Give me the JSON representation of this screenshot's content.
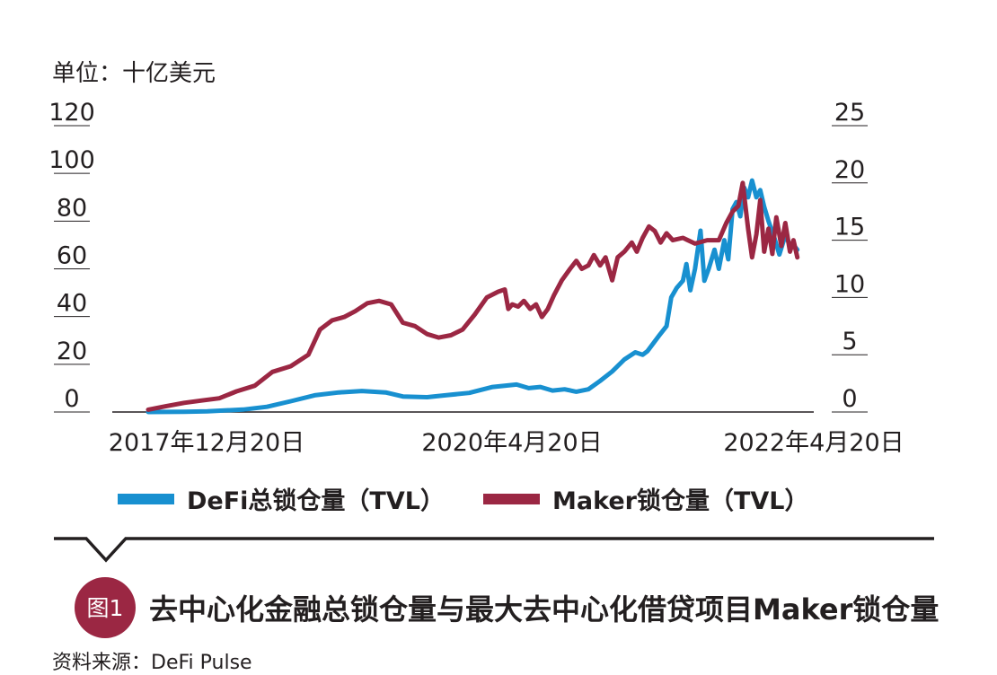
{
  "chart_data": {
    "type": "line",
    "unit_label": "单位：十亿美元",
    "left_axis": {
      "ticks": [
        "120",
        "100",
        "80",
        "60",
        "40",
        "20",
        "0"
      ],
      "range": [
        0,
        120
      ]
    },
    "right_axis": {
      "ticks": [
        "25",
        "20",
        "15",
        "10",
        "5",
        "0"
      ],
      "range": [
        0,
        25
      ]
    },
    "x_ticks": [
      "2017年12月20日",
      "2020年4月20日",
      "2022年4月20日"
    ],
    "x_range": [
      "2017-07-01",
      "2022-06-01"
    ],
    "grid": false,
    "legend_position": "bottom",
    "series": [
      {
        "name": "DeFi总锁仓量（TVL）",
        "axis": "left",
        "color": "#1890d0",
        "points": [
          [
            "2017-10-01",
            0
          ],
          [
            "2018-01-01",
            0.1
          ],
          [
            "2018-03-01",
            0.3
          ],
          [
            "2018-06-01",
            1.0
          ],
          [
            "2018-08-01",
            2.2
          ],
          [
            "2018-10-01",
            4.5
          ],
          [
            "2018-12-01",
            7.0
          ],
          [
            "2019-02-01",
            8.2
          ],
          [
            "2019-04-01",
            8.8
          ],
          [
            "2019-06-01",
            8.2
          ],
          [
            "2019-07-15",
            6.5
          ],
          [
            "2019-09-15",
            6.2
          ],
          [
            "2019-11-01",
            7.0
          ],
          [
            "2020-01-01",
            8.0
          ],
          [
            "2020-03-01",
            10.5
          ],
          [
            "2020-05-01",
            11.5
          ],
          [
            "2020-06-01",
            10.0
          ],
          [
            "2020-07-01",
            10.5
          ],
          [
            "2020-08-01",
            9.0
          ],
          [
            "2020-09-01",
            9.5
          ],
          [
            "2020-10-01",
            8.5
          ],
          [
            "2020-11-01",
            9.5
          ],
          [
            "2020-12-01",
            13.0
          ],
          [
            "2021-01-01",
            17.0
          ],
          [
            "2021-02-01",
            22.0
          ],
          [
            "2021-03-01",
            25.0
          ],
          [
            "2021-03-20",
            24.0
          ],
          [
            "2021-04-01",
            25.5
          ],
          [
            "2021-05-01",
            32.0
          ],
          [
            "2021-05-20",
            36.0
          ],
          [
            "2021-06-01",
            48.0
          ],
          [
            "2021-06-15",
            52.0
          ],
          [
            "2021-07-01",
            55.0
          ],
          [
            "2021-07-10",
            62.0
          ],
          [
            "2021-07-20",
            51.0
          ],
          [
            "2021-08-01",
            60.0
          ],
          [
            "2021-08-15",
            76.0
          ],
          [
            "2021-08-25",
            55.0
          ],
          [
            "2021-09-05",
            60.0
          ],
          [
            "2021-09-20",
            68.0
          ],
          [
            "2021-10-01",
            60.0
          ],
          [
            "2021-10-15",
            72.0
          ],
          [
            "2021-10-25",
            64.0
          ],
          [
            "2021-11-05",
            85.0
          ],
          [
            "2021-11-15",
            88.0
          ],
          [
            "2021-11-25",
            82.0
          ],
          [
            "2021-12-05",
            94.0
          ],
          [
            "2021-12-15",
            90.0
          ],
          [
            "2021-12-25",
            97.0
          ],
          [
            "2022-01-05",
            90.0
          ],
          [
            "2022-01-15",
            93.0
          ],
          [
            "2022-01-25",
            86.0
          ],
          [
            "2022-02-05",
            80.0
          ],
          [
            "2022-02-20",
            73.0
          ],
          [
            "2022-03-05",
            66.0
          ],
          [
            "2022-03-20",
            74.0
          ],
          [
            "2022-04-01",
            70.0
          ],
          [
            "2022-04-10",
            70.0
          ],
          [
            "2022-04-20",
            68.0
          ]
        ]
      },
      {
        "name": "Maker锁仓量（TVL）",
        "axis": "right",
        "color": "#9b2743",
        "points": [
          [
            "2017-10-01",
            0.2
          ],
          [
            "2017-11-15",
            0.5
          ],
          [
            "2018-01-01",
            0.8
          ],
          [
            "2018-02-15",
            1.0
          ],
          [
            "2018-04-01",
            1.2
          ],
          [
            "2018-05-15",
            1.8
          ],
          [
            "2018-07-01",
            2.3
          ],
          [
            "2018-08-15",
            3.5
          ],
          [
            "2018-10-01",
            4.0
          ],
          [
            "2018-11-15",
            5.0
          ],
          [
            "2018-12-15",
            7.2
          ],
          [
            "2019-01-15",
            8.0
          ],
          [
            "2019-02-15",
            8.3
          ],
          [
            "2019-03-15",
            8.8
          ],
          [
            "2019-04-15",
            9.5
          ],
          [
            "2019-05-15",
            9.7
          ],
          [
            "2019-06-15",
            9.4
          ],
          [
            "2019-07-15",
            7.8
          ],
          [
            "2019-08-15",
            7.5
          ],
          [
            "2019-09-15",
            6.8
          ],
          [
            "2019-10-15",
            6.5
          ],
          [
            "2019-11-15",
            6.7
          ],
          [
            "2019-12-15",
            7.2
          ],
          [
            "2020-01-15",
            8.5
          ],
          [
            "2020-02-15",
            10.0
          ],
          [
            "2020-03-15",
            10.5
          ],
          [
            "2020-04-01",
            10.7
          ],
          [
            "2020-04-10",
            9.0
          ],
          [
            "2020-04-20",
            9.4
          ],
          [
            "2020-05-05",
            9.2
          ],
          [
            "2020-05-20",
            9.7
          ],
          [
            "2020-06-05",
            9.0
          ],
          [
            "2020-06-20",
            9.4
          ],
          [
            "2020-07-05",
            8.3
          ],
          [
            "2020-07-20",
            9.0
          ],
          [
            "2020-08-05",
            10.2
          ],
          [
            "2020-08-25",
            11.5
          ],
          [
            "2020-09-15",
            12.5
          ],
          [
            "2020-10-01",
            13.2
          ],
          [
            "2020-10-15",
            12.5
          ],
          [
            "2020-11-01",
            12.8
          ],
          [
            "2020-11-15",
            13.7
          ],
          [
            "2020-12-01",
            12.8
          ],
          [
            "2020-12-15",
            13.5
          ],
          [
            "2021-01-01",
            11.5
          ],
          [
            "2021-01-15",
            13.5
          ],
          [
            "2021-02-01",
            14.0
          ],
          [
            "2021-02-20",
            14.8
          ],
          [
            "2021-03-05",
            14.0
          ],
          [
            "2021-03-20",
            15.2
          ],
          [
            "2021-04-05",
            16.2
          ],
          [
            "2021-04-20",
            15.8
          ],
          [
            "2021-05-05",
            14.8
          ],
          [
            "2021-05-20",
            15.6
          ],
          [
            "2021-06-05",
            15.0
          ],
          [
            "2021-07-01",
            15.2
          ],
          [
            "2021-08-01",
            14.7
          ],
          [
            "2021-09-01",
            15.0
          ],
          [
            "2021-10-01",
            15.0
          ],
          [
            "2021-10-20",
            16.5
          ],
          [
            "2021-11-05",
            17.5
          ],
          [
            "2021-11-20",
            18.0
          ],
          [
            "2021-12-01",
            20.0
          ],
          [
            "2021-12-15",
            16.0
          ],
          [
            "2021-12-25",
            13.5
          ],
          [
            "2022-01-05",
            15.5
          ],
          [
            "2022-01-15",
            18.5
          ],
          [
            "2022-01-25",
            14.0
          ],
          [
            "2022-02-05",
            16.0
          ],
          [
            "2022-02-15",
            13.8
          ],
          [
            "2022-02-25",
            17.0
          ],
          [
            "2022-03-10",
            14.5
          ],
          [
            "2022-03-20",
            16.5
          ],
          [
            "2022-04-01",
            14.0
          ],
          [
            "2022-04-10",
            15.0
          ],
          [
            "2022-04-20",
            13.5
          ]
        ]
      }
    ]
  },
  "figure": {
    "badge": "图1",
    "title": "去中心化金融总锁仓量与最大去中心化借贷项目Maker锁仓量",
    "source": "资料来源：DeFi Pulse",
    "badge_color": "#9b2743"
  }
}
